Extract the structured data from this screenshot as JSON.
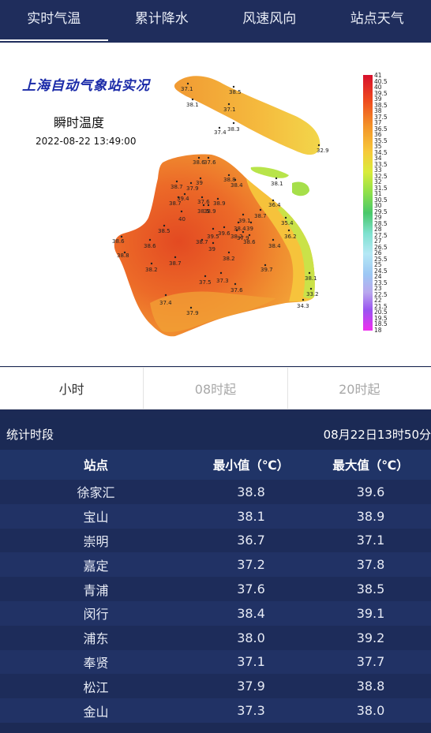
{
  "tabs": [
    {
      "label": "实时气温",
      "active": true
    },
    {
      "label": "累计降水",
      "active": false
    },
    {
      "label": "风速风向",
      "active": false
    },
    {
      "label": "站点天气",
      "active": false
    }
  ],
  "map": {
    "title": "上海自动气象站实况",
    "subtitle": "瞬时温度",
    "timestamp": "2022-08-22 13:49:00",
    "legend_values": [
      "41",
      "40.5",
      "40",
      "39.5",
      "39",
      "38.5",
      "38",
      "37.5",
      "37",
      "36.5",
      "36",
      "35.5",
      "35",
      "34.5",
      "34",
      "33.5",
      "33",
      "32.5",
      "32",
      "31.5",
      "31",
      "30.5",
      "30",
      "29.5",
      "29",
      "28.5",
      "28",
      "27.5",
      "27",
      "26.5",
      "26",
      "25.5",
      "25",
      "24.5",
      "24",
      "23.5",
      "23",
      "22.5",
      "22",
      "21.5",
      "20.5",
      "19.5",
      "18.5",
      "18"
    ],
    "station_readings": [
      "37.1",
      "38.1",
      "37.1",
      "38.5",
      "37.4",
      "38.3",
      "32.9",
      "38.6",
      "37.6",
      "38.7",
      "38.8",
      "38.1",
      "38.7",
      "37.9",
      "39",
      "38.4",
      "39.4",
      "37.6",
      "38.5",
      "36.4",
      "38.9",
      "38.9",
      "38.7",
      "40",
      "39.1",
      "35.4",
      "38.5",
      "38.4",
      "39",
      "36.2",
      "38.6",
      "39.5",
      "39.6",
      "38.2",
      "38.6",
      "38.7",
      "39",
      "38.6",
      "38.8",
      "38.4",
      "38.2",
      "37.9",
      "38.7",
      "39.7",
      "38.2",
      "38.1",
      "37.5",
      "37.3",
      "37.6",
      "33.2",
      "37.4",
      "37.9",
      "34.3"
    ]
  },
  "subtabs": [
    {
      "label": "小时",
      "active": true
    },
    {
      "label": "08时起",
      "active": false
    },
    {
      "label": "20时起",
      "active": false
    }
  ],
  "stat": {
    "label": "统计时段",
    "value": "08月22日13时50分"
  },
  "table": {
    "headers": [
      "站点",
      "最小值（℃）",
      "最大值（℃）"
    ],
    "rows": [
      [
        "徐家汇",
        "38.8",
        "39.6"
      ],
      [
        "宝山",
        "38.1",
        "38.9"
      ],
      [
        "崇明",
        "36.7",
        "37.1"
      ],
      [
        "嘉定",
        "37.2",
        "37.8"
      ],
      [
        "青浦",
        "37.6",
        "38.5"
      ],
      [
        "闵行",
        "38.4",
        "39.1"
      ],
      [
        "浦东",
        "38.0",
        "39.2"
      ],
      [
        "奉贤",
        "37.1",
        "37.7"
      ],
      [
        "松江",
        "37.9",
        "38.8"
      ],
      [
        "金山",
        "37.3",
        "38.0"
      ]
    ]
  }
}
